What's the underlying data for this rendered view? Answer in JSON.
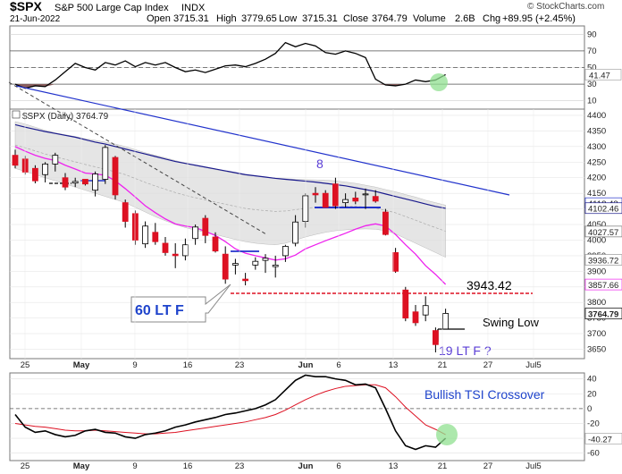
{
  "header": {
    "symbol": "$SPX",
    "name": "S&P 500 Large Cap Index",
    "exchange": "INDX",
    "date": "21-Jun-2022",
    "open_label": "Open",
    "open": "3715.31",
    "high_label": "High",
    "high": "3779.65",
    "low_label": "Low",
    "low": "3715.31",
    "close_label": "Close",
    "close": "3764.79",
    "volume_label": "Volume",
    "volume": "2.6B",
    "chg_label": "Chg",
    "chg": "+89.95 (+2.45%)",
    "watermark": "© StockCharts.com"
  },
  "colors": {
    "up_candle": "#ffffff",
    "down_candle": "#dd1122",
    "black_candle": "#000000",
    "ma_fast": "#ee22ee",
    "ma_slow": "#1a1a8c",
    "band_fill": "#dcdcdc",
    "trendline_blue": "#2233cc",
    "resistance": "#dd1122",
    "tsi_line": "#000000",
    "tsi_signal": "#dd1122",
    "rsi_fill": "#8b5e5e",
    "highlight_circle": "#90e090"
  },
  "x_axis": {
    "labels": [
      "25",
      "May",
      "9",
      "16",
      "23",
      "Jun",
      "6",
      "13",
      "21",
      "27",
      "Jul5"
    ]
  },
  "rsi_panel": {
    "y_ticks": [
      "90",
      "70",
      "50",
      "30",
      "10"
    ],
    "value_label": "41.47",
    "values": [
      30,
      25,
      28,
      27,
      35,
      45,
      55,
      50,
      47,
      56,
      53,
      58,
      51,
      56,
      53,
      56,
      50,
      45,
      47,
      44,
      48,
      52,
      53,
      51,
      55,
      60,
      67,
      80,
      75,
      79,
      76,
      68,
      66,
      70,
      67,
      62,
      36,
      29,
      28,
      30,
      35,
      33,
      35,
      41.5
    ]
  },
  "price_panel": {
    "label": "$SPX (Daily) 3764.79",
    "y_ticks": [
      "4400",
      "4350",
      "4300",
      "4250",
      "4200",
      "4150",
      "4100",
      "4050",
      "4000",
      "3950",
      "3900",
      "3850",
      "3800",
      "3750",
      "3700",
      "3650"
    ],
    "value_tags": [
      "4118.43",
      "4102.46",
      "4027.57",
      "3936.72",
      "3857.66",
      "3764.79"
    ],
    "annotations": {
      "label_8": "8",
      "resistance_value": "3943.42",
      "lt_f_60": "60 LT F",
      "swing_low": "Swing Low",
      "lt_f_19": "19 LT F ?"
    }
  },
  "tsi_panel": {
    "y_ticks": [
      "40",
      "20",
      "0",
      "-20",
      "-40",
      "-60"
    ],
    "value_label": "-40.27",
    "annotation": "Bullish TSI Crossover"
  },
  "chart_data": {
    "type": "candlestick",
    "title": "$SPX S&P 500 Large Cap Index INDX",
    "date_range": [
      "2022-04-22",
      "2022-06-21"
    ],
    "series": [
      {
        "name": "$SPX (Daily)",
        "ohlc": [
          [
            4272,
            4290,
            4230,
            4240
          ],
          [
            4260,
            4270,
            4210,
            4218
          ],
          [
            4230,
            4240,
            4182,
            4190
          ],
          [
            4210,
            4250,
            4185,
            4244
          ],
          [
            4244,
            4280,
            4220,
            4272
          ],
          [
            4200,
            4215,
            4160,
            4170
          ],
          [
            4183,
            4200,
            4170,
            4188
          ],
          [
            4195,
            4195,
            4175,
            4180
          ],
          [
            4160,
            4220,
            4140,
            4212
          ],
          [
            4195,
            4305,
            4180,
            4297
          ],
          [
            4265,
            4270,
            4130,
            4145
          ],
          [
            4120,
            4130,
            4040,
            4060
          ],
          [
            4085,
            4095,
            3985,
            4000
          ],
          [
            3988,
            4060,
            3975,
            4045
          ],
          [
            4025,
            4055,
            3985,
            3995
          ],
          [
            3990,
            4010,
            3950,
            3960
          ],
          [
            3955,
            3990,
            3910,
            3950
          ],
          [
            3950,
            4005,
            3935,
            3985
          ],
          [
            4005,
            4050,
            3985,
            4042
          ],
          [
            4070,
            4080,
            3990,
            4015
          ],
          [
            4010,
            4025,
            3960,
            3965
          ],
          [
            3955,
            3980,
            3860,
            3875
          ],
          [
            3920,
            3940,
            3890,
            3925
          ],
          [
            3875,
            3895,
            3855,
            3870
          ],
          [
            3920,
            3945,
            3905,
            3932
          ],
          [
            3935,
            3955,
            3895,
            3942
          ],
          [
            3915,
            3950,
            3880,
            3920
          ],
          [
            3950,
            3985,
            3930,
            3980
          ],
          [
            3990,
            4080,
            3980,
            4058
          ],
          [
            4060,
            4150,
            4040,
            4142
          ],
          [
            4150,
            4170,
            4120,
            4145
          ],
          [
            4150,
            4160,
            4105,
            4105
          ],
          [
            4180,
            4200,
            4100,
            4110
          ],
          [
            4120,
            4150,
            4105,
            4130
          ],
          [
            4135,
            4155,
            4115,
            4125
          ],
          [
            4145,
            4165,
            4100,
            4148
          ],
          [
            4140,
            4160,
            4120,
            4125
          ],
          [
            4090,
            4100,
            4015,
            4018
          ],
          [
            3960,
            3975,
            3895,
            3900
          ],
          [
            3840,
            3850,
            3740,
            3750
          ],
          [
            3770,
            3792,
            3725,
            3735
          ],
          [
            3760,
            3820,
            3740,
            3790
          ],
          [
            3710,
            3720,
            3640,
            3665
          ],
          [
            3715,
            3780,
            3715,
            3765
          ]
        ]
      },
      {
        "name": "Fast MA",
        "values": [
          4300,
          4285,
          4272,
          4262,
          4255,
          4240,
          4228,
          4215,
          4212,
          4208,
          4190,
          4165,
          4138,
          4110,
          4088,
          4068,
          4052,
          4045,
          4040,
          4028,
          4015,
          3995,
          3972,
          3958,
          3950,
          3943,
          3936,
          3940,
          3952,
          3972,
          3985,
          3998,
          4010,
          4022,
          4035,
          4046,
          4052,
          4045,
          4018,
          3985,
          3955,
          3918,
          3890,
          3858
        ]
      },
      {
        "name": "Slow MA",
        "values": [
          4370,
          4362,
          4355,
          4348,
          4342,
          4336,
          4330,
          4322,
          4314,
          4308,
          4300,
          4292,
          4284,
          4276,
          4268,
          4260,
          4252,
          4246,
          4240,
          4234,
          4228,
          4222,
          4216,
          4210,
          4206,
          4202,
          4198,
          4195,
          4192,
          4189,
          4186,
          4182,
          4178,
          4174,
          4168,
          4162,
          4156,
          4148,
          4140,
          4132,
          4124,
          4116,
          4108,
          4102
        ]
      },
      {
        "name": "TSI",
        "values": [
          -8,
          -25,
          -32,
          -30,
          -35,
          -38,
          -36,
          -30,
          -28,
          -32,
          -33,
          -38,
          -40,
          -35,
          -33,
          -30,
          -25,
          -22,
          -18,
          -15,
          -12,
          -8,
          -6,
          -3,
          0,
          5,
          12,
          25,
          38,
          45,
          43,
          43,
          40,
          38,
          32,
          33,
          28,
          0,
          -30,
          -50,
          -55,
          -50,
          -52,
          -40
        ]
      },
      {
        "name": "TSI Signal",
        "values": [
          -20,
          -22,
          -24,
          -25,
          -27,
          -29,
          -30,
          -30,
          -29,
          -30,
          -31,
          -32,
          -33,
          -34,
          -34,
          -33,
          -32,
          -30,
          -28,
          -26,
          -24,
          -22,
          -20,
          -18,
          -15,
          -12,
          -8,
          -2,
          5,
          12,
          18,
          23,
          27,
          30,
          31,
          32,
          32,
          28,
          16,
          2,
          -10,
          -22,
          -28,
          -35
        ]
      }
    ],
    "bands": {
      "upper": [
        4380,
        4372,
        4362,
        4352,
        4344,
        4338,
        4332,
        4325,
        4320,
        4314,
        4308,
        4300,
        4290,
        4280,
        4272,
        4264,
        4255,
        4247,
        4240,
        4233,
        4226,
        4220,
        4214,
        4208,
        4205,
        4202,
        4199,
        4197,
        4195,
        4194,
        4193,
        4192,
        4190,
        4186,
        4182,
        4176,
        4170,
        4162,
        4155,
        4146,
        4138,
        4128,
        4120,
        4112
      ],
      "lower": [
        4230,
        4220,
        4210,
        4200,
        4190,
        4180,
        4170,
        4160,
        4150,
        4140,
        4130,
        4120,
        4105,
        4090,
        4075,
        4062,
        4050,
        4040,
        4032,
        4025,
        4018,
        4010,
        4002,
        3995,
        3990,
        3987,
        3985,
        3990,
        4000,
        4010,
        4018,
        4025,
        4030,
        4033,
        4035,
        4036,
        4035,
        4030,
        4020,
        4005,
        3990,
        3975,
        3960,
        3945
      ]
    },
    "ylim": [
      3620,
      4420
    ],
    "tsi_ylim": [
      -70,
      48
    ],
    "rsi_ylim": [
      0,
      100
    ]
  }
}
